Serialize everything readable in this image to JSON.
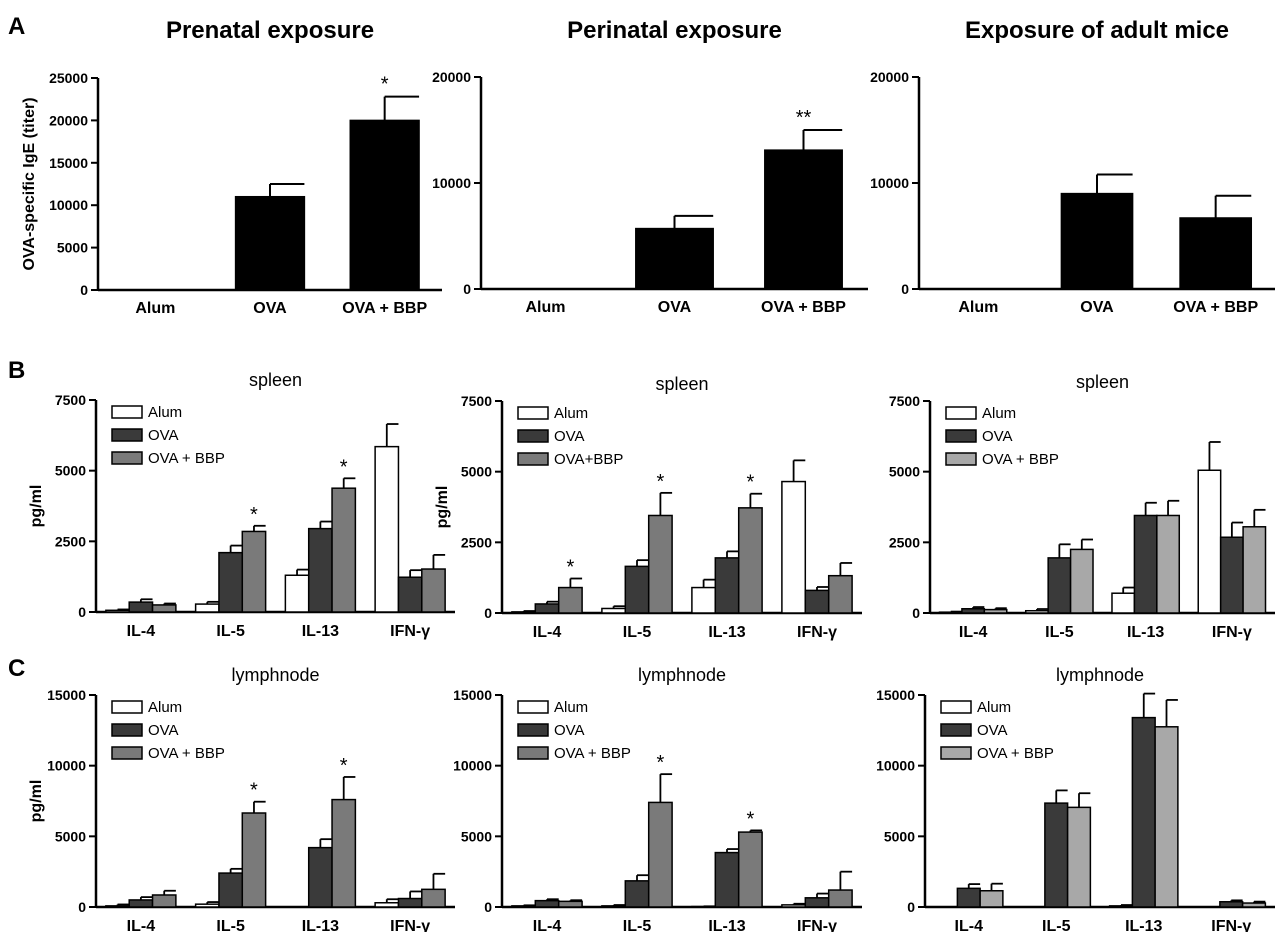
{
  "panel_letters": [
    "A",
    "B",
    "C"
  ],
  "colors": {
    "Alum": "#ffffff",
    "OVA": "#3a3a3a",
    "OVA + BBP": "#7a7a7a",
    "OVA + BBP (light)": "#a8a8a8",
    "black": "#000000"
  },
  "chart_data": [
    {
      "type": "bar",
      "row": "A",
      "col": 0,
      "title": "Prenatal exposure",
      "ylabel": "OVA-specific IgE (titer)",
      "ylim": [
        0,
        25000
      ],
      "yticks": [
        0,
        5000,
        10000,
        15000,
        20000,
        25000
      ],
      "categories": [
        "Alum",
        "OVA",
        "OVA + BBP"
      ],
      "values": [
        0,
        11000,
        20000
      ],
      "errors": [
        0,
        1500,
        2800
      ],
      "significance": [
        "",
        "",
        "*"
      ]
    },
    {
      "type": "bar",
      "row": "A",
      "col": 1,
      "title": "Perinatal exposure",
      "ylabel": "",
      "ylim": [
        0,
        20000
      ],
      "yticks": [
        0,
        10000,
        20000
      ],
      "categories": [
        "Alum",
        "OVA",
        "OVA + BBP"
      ],
      "values": [
        0,
        5700,
        13100
      ],
      "errors": [
        0,
        1200,
        1900
      ],
      "significance": [
        "",
        "",
        "**"
      ]
    },
    {
      "type": "bar",
      "row": "A",
      "col": 2,
      "title": "Exposure of adult mice",
      "ylabel": "",
      "ylim": [
        0,
        20000
      ],
      "yticks": [
        0,
        10000,
        20000
      ],
      "categories": [
        "Alum",
        "OVA",
        "OVA + BBP"
      ],
      "values": [
        0,
        9000,
        6700
      ],
      "errors": [
        0,
        1800,
        2100
      ],
      "significance": [
        "",
        "",
        ""
      ]
    },
    {
      "type": "bar",
      "row": "B",
      "col": 0,
      "title": "spleen",
      "ylabel": "pg/ml",
      "ylim": [
        0,
        7500
      ],
      "yticks": [
        0,
        2500,
        5000,
        7500
      ],
      "categories": [
        "IL-4",
        "IL-5",
        "IL-13",
        "IFN-γ"
      ],
      "series": [
        {
          "name": "Alum",
          "values": [
            60,
            280,
            1300,
            5850
          ],
          "errors": [
            30,
            80,
            200,
            800
          ],
          "sig": [
            "",
            "",
            "",
            ""
          ]
        },
        {
          "name": "OVA",
          "values": [
            350,
            2100,
            2950,
            1230
          ],
          "errors": [
            100,
            250,
            250,
            250
          ],
          "sig": [
            "",
            "",
            "",
            ""
          ]
        },
        {
          "name": "OVA + BBP",
          "values": [
            250,
            2850,
            4380,
            1520
          ],
          "errors": [
            50,
            200,
            350,
            500
          ],
          "sig": [
            "",
            "*",
            "*",
            ""
          ]
        }
      ]
    },
    {
      "type": "bar",
      "row": "B",
      "col": 1,
      "title": "spleen",
      "ylabel": "pg/ml",
      "ylim": [
        0,
        7500
      ],
      "yticks": [
        0,
        2500,
        5000,
        7500
      ],
      "categories": [
        "IL-4",
        "IL-5",
        "IL-13",
        "IFN-γ"
      ],
      "series": [
        {
          "name": "Alum",
          "values": [
            40,
            160,
            900,
            4650
          ],
          "errors": [
            30,
            80,
            280,
            750
          ],
          "sig": [
            "",
            "",
            "",
            ""
          ]
        },
        {
          "name": "OVA",
          "values": [
            320,
            1650,
            1950,
            800
          ],
          "errors": [
            80,
            220,
            230,
            120
          ],
          "sig": [
            "",
            "",
            "",
            ""
          ]
        },
        {
          "name": "OVA+BBP",
          "values": [
            900,
            3450,
            3720,
            1320
          ],
          "errors": [
            320,
            800,
            500,
            450
          ],
          "sig": [
            "*",
            "*",
            "*",
            ""
          ]
        }
      ]
    },
    {
      "type": "bar",
      "row": "B",
      "col": 2,
      "title": "spleen",
      "ylabel": "",
      "ylim": [
        0,
        7500
      ],
      "yticks": [
        0,
        2500,
        5000,
        7500
      ],
      "categories": [
        "IL-4",
        "IL-5",
        "IL-13",
        "IFN-γ"
      ],
      "series": [
        {
          "name": "Alum",
          "values": [
            30,
            80,
            700,
            5050
          ],
          "errors": [
            20,
            60,
            200,
            1000
          ],
          "sig": [
            "",
            "",
            "",
            ""
          ]
        },
        {
          "name": "OVA",
          "values": [
            150,
            1950,
            3450,
            2680
          ],
          "errors": [
            60,
            480,
            450,
            520
          ],
          "sig": [
            "",
            "",
            "",
            ""
          ]
        },
        {
          "name": "OVA + BBP",
          "values": [
            120,
            2250,
            3450,
            3050
          ],
          "errors": [
            50,
            350,
            520,
            600
          ],
          "sig": [
            "",
            "",
            "",
            ""
          ]
        }
      ]
    },
    {
      "type": "bar",
      "row": "C",
      "col": 0,
      "title": "lymphnode",
      "ylabel": "pg/ml",
      "ylim": [
        0,
        15000
      ],
      "yticks": [
        0,
        5000,
        10000,
        15000
      ],
      "categories": [
        "IL-4",
        "IL-5",
        "IL-13",
        "IFN-γ"
      ],
      "series": [
        {
          "name": "Alum",
          "values": [
            80,
            200,
            0,
            300
          ],
          "errors": [
            100,
            150,
            0,
            250
          ],
          "sig": [
            "",
            "",
            "",
            ""
          ]
        },
        {
          "name": "OVA",
          "values": [
            500,
            2400,
            4200,
            600
          ],
          "errors": [
            200,
            300,
            600,
            500
          ],
          "sig": [
            "",
            "",
            "",
            ""
          ]
        },
        {
          "name": "OVA + BBP",
          "values": [
            850,
            6650,
            7600,
            1250
          ],
          "errors": [
            300,
            800,
            1600,
            1100
          ],
          "sig": [
            "",
            "*",
            "*",
            ""
          ]
        }
      ]
    },
    {
      "type": "bar",
      "row": "C",
      "col": 1,
      "title": "lymphnode",
      "ylabel": "",
      "ylim": [
        0,
        15000
      ],
      "yticks": [
        0,
        5000,
        10000,
        15000
      ],
      "categories": [
        "IL-4",
        "IL-5",
        "IL-13",
        "IFN-γ"
      ],
      "series": [
        {
          "name": "Alum",
          "values": [
            80,
            80,
            30,
            150
          ],
          "errors": [
            40,
            60,
            20,
            80
          ],
          "sig": [
            "",
            "",
            "",
            ""
          ]
        },
        {
          "name": "OVA",
          "values": [
            450,
            1850,
            3850,
            650
          ],
          "errors": [
            100,
            400,
            250,
            300
          ],
          "sig": [
            "",
            "",
            "",
            ""
          ]
        },
        {
          "name": "OVA + BBP",
          "values": [
            400,
            7400,
            5300,
            1200
          ],
          "errors": [
            80,
            2000,
            120,
            1300
          ],
          "sig": [
            "",
            "*",
            "*",
            ""
          ]
        }
      ]
    },
    {
      "type": "bar",
      "row": "C",
      "col": 2,
      "title": "lymphnode",
      "ylabel": "",
      "ylim": [
        0,
        15000
      ],
      "yticks": [
        0,
        5000,
        10000,
        15000
      ],
      "categories": [
        "IL-4",
        "IL-5",
        "IL-13",
        "IFN-γ"
      ],
      "series": [
        {
          "name": "Alum",
          "values": [
            0,
            0,
            80,
            0
          ],
          "errors": [
            0,
            0,
            60,
            0
          ],
          "sig": [
            "",
            "",
            "",
            ""
          ]
        },
        {
          "name": "OVA",
          "values": [
            1320,
            7350,
            13400,
            370
          ],
          "errors": [
            300,
            900,
            1700,
            100
          ],
          "sig": [
            "",
            "",
            "",
            ""
          ]
        },
        {
          "name": "OVA + BBP",
          "values": [
            1150,
            7050,
            12750,
            280
          ],
          "errors": [
            500,
            1000,
            1900,
            100
          ],
          "sig": [
            "",
            "",
            "",
            ""
          ]
        }
      ]
    }
  ]
}
